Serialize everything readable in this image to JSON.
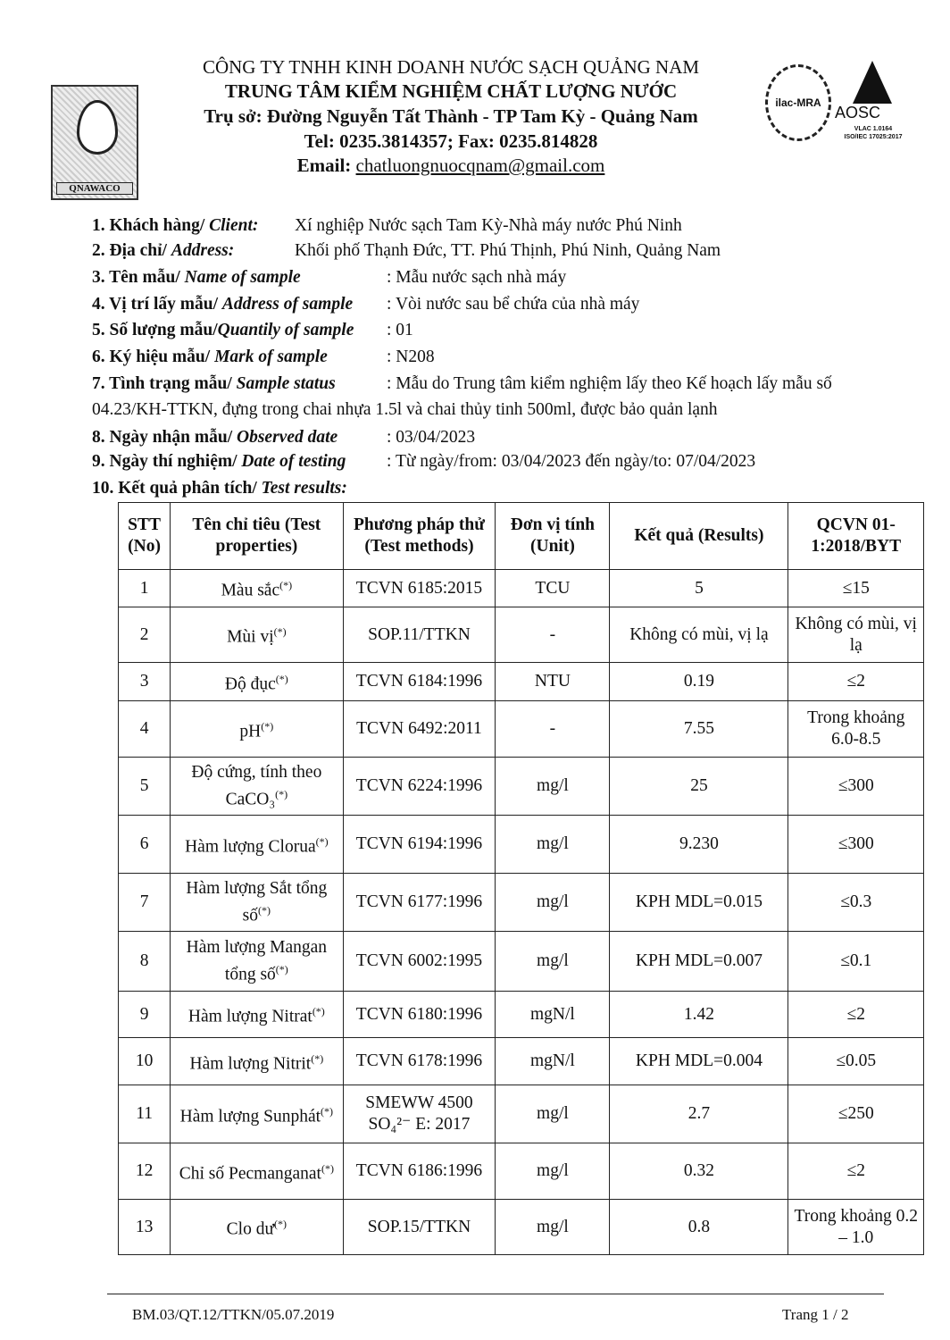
{
  "header": {
    "company": "CÔNG TY TNHH KINH DOANH NƯỚC SẠCH QUẢNG NAM",
    "center": "TRUNG TÂM KIỂM NGHIỆM CHẤT LƯỢNG NƯỚC",
    "address": "Trụ sở: Đường Nguyễn Tất Thành - TP Tam Kỳ -  Quảng Nam",
    "phone": "Tel: 0235.3814357; Fax: 0235.814828",
    "email_label": "Email: ",
    "email": "chatluongnuocqnam@gmail.com",
    "logo_text": "QNAWACO",
    "ilac_text": "ilac-MRA",
    "aosc_text": "AOSC",
    "aosc_sub1": "VLAC 1.0164",
    "aosc_sub2": "ISO/IEC 17025:2017"
  },
  "info": [
    {
      "label": "1. Khách hàng/ ",
      "label_en": "Client:",
      "value": "Xí nghiệp Nước sạch Tam Kỳ-Nhà máy nước Phú Ninh"
    },
    {
      "label": "2. Địa chỉ/ ",
      "label_en": "Address:",
      "value": "Khối phố Thạnh Đức, TT. Phú Thịnh, Phú Ninh, Quảng Nam"
    },
    {
      "label": "3. Tên mẫu/ ",
      "label_en": "Name of sample",
      "value": ": Mẫu nước sạch nhà máy"
    },
    {
      "label": "4. Vị trí lấy mẫu/ ",
      "label_en": "Address of sample",
      "value": ": Vòi nước sau bể chứa của nhà máy"
    },
    {
      "label": "5. Số lượng mẫu/",
      "label_en": "Quantily of sample",
      "value": ": 01"
    },
    {
      "label": "6. Ký hiệu mẫu/ ",
      "label_en": "Mark of sample",
      "value": ": N208"
    },
    {
      "label": "7. Tình trạng mẫu/ ",
      "label_en": "Sample status",
      "value": ": Mẫu do Trung tâm kiểm nghiệm lấy theo Kế hoạch lấy mẫu số",
      "value2": "04.23/KH-TTKN, đựng trong chai nhựa 1.5l và chai thủy tinh 500ml, được bảo quản lạnh"
    },
    {
      "label": "8. Ngày nhận mẫu/ ",
      "label_en": "Observed date",
      "value": ": 03/04/2023"
    },
    {
      "label": "9. Ngày thí nghiệm/ ",
      "label_en": "Date of testing",
      "value": ": Từ ngày/from: 03/04/2023  đến ngày/to: 07/04/2023"
    },
    {
      "label": "10. Kết quả phân tích/ ",
      "label_en": "Test results:",
      "value": ""
    }
  ],
  "table": {
    "headers": [
      "STT (No)",
      "Tên chỉ tiêu (Test properties)",
      "Phương pháp thử (Test methods)",
      "Đơn vị tính (Unit)",
      "Kết quả (Results)",
      "QCVN 01-1:2018/BYT"
    ],
    "rows": [
      [
        "1",
        "Màu sắc",
        "TCVN 6185:2015",
        "TCU",
        "5",
        "≤15"
      ],
      [
        "2",
        "Mùi vị",
        "SOP.11/TTKN",
        "-",
        "Không có mùi, vị lạ",
        "Không có mùi, vị lạ"
      ],
      [
        "3",
        "Độ đục",
        "TCVN 6184:1996",
        "NTU",
        "0.19",
        "≤2"
      ],
      [
        "4",
        "pH",
        "TCVN 6492:2011",
        "-",
        "7.55",
        "Trong khoảng 6.0-8.5"
      ],
      [
        "5",
        "Độ cứng, tính theo CaCO₃",
        "TCVN 6224:1996",
        "mg/l",
        "25",
        "≤300"
      ],
      [
        "6",
        "Hàm lượng Clorua",
        "TCVN 6194:1996",
        "mg/l",
        "9.230",
        "≤300"
      ],
      [
        "7",
        "Hàm lượng Sắt tổng số",
        "TCVN 6177:1996",
        "mg/l",
        "KPH MDL=0.015",
        "≤0.3"
      ],
      [
        "8",
        "Hàm lượng Mangan tổng số",
        "TCVN 6002:1995",
        "mg/l",
        "KPH MDL=0.007",
        "≤0.1"
      ],
      [
        "9",
        "Hàm lượng Nitrat",
        "TCVN 6180:1996",
        "mgN/l",
        "1.42",
        "≤2"
      ],
      [
        "10",
        "Hàm lượng Nitrit",
        "TCVN 6178:1996",
        "mgN/l",
        "KPH MDL=0.004",
        "≤0.05"
      ],
      [
        "11",
        "Hàm lượng Sunphát",
        "SMEWW 4500 SO₄²⁻ E: 2017",
        "mg/l",
        "2.7",
        "≤250"
      ],
      [
        "12",
        "Chỉ số Pecmanganat",
        "TCVN 6186:1996",
        "mg/l",
        "0.32",
        "≤2"
      ],
      [
        "13",
        "Clo dư",
        "SOP.15/TTKN",
        "mg/l",
        "0.8",
        "Trong khoảng 0.2 – 1.0"
      ]
    ],
    "mark": "(*)"
  },
  "footer": {
    "form_code": "BM.03/QT.12/TTKN/05.07.2019",
    "page": "Trang 1 / 2"
  }
}
